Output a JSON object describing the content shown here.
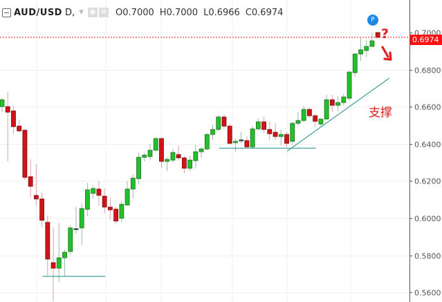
{
  "header": {
    "symbol": "AUD/USD",
    "interval": "D,",
    "open_label": "O",
    "open": "0.7000",
    "high_label": "H",
    "high": "0.7000",
    "low_label": "L",
    "low": "0.6966",
    "close_label": "C",
    "close": "0.6974",
    "icons": [
      "collapse-icon",
      "dropdown-caret-icon",
      "eye-icon",
      "gear-icon"
    ]
  },
  "price_tag": "0.6974",
  "marker": "P",
  "annotations": {
    "question": "?",
    "support": "支撑"
  },
  "colors": {
    "up": "#22c02a",
    "up_border": "#1c6e1c",
    "down": "#d0141a",
    "down_border": "#7a0a0a",
    "doji": "#2d4a3c",
    "lines": "#3d9e97",
    "price_line": "#e01010",
    "marker": "#1e88e5",
    "annotation": "#e02020"
  },
  "chart_data": {
    "type": "candlestick",
    "title": "AUD/USD, D",
    "ylim": [
      0.5549,
      0.7175
    ],
    "yticks": [
      "0.7000",
      "0.6800",
      "0.6600",
      "0.6400",
      "0.6200",
      "0.6000",
      "0.5800",
      "0.5600"
    ],
    "grid": true,
    "last_price": 0.6974,
    "candles_ohlc": [
      [
        0.6601,
        0.6646,
        0.6571,
        0.6638
      ],
      [
        0.6601,
        0.6679,
        0.6306,
        0.6571
      ],
      [
        0.6578,
        0.6604,
        0.6455,
        0.6493
      ],
      [
        0.6496,
        0.653,
        0.6466,
        0.647
      ],
      [
        0.6474,
        0.6481,
        0.6205,
        0.622
      ],
      [
        0.6224,
        0.6317,
        0.6112,
        0.6172
      ],
      [
        0.6123,
        0.6291,
        0.6067,
        0.6104
      ],
      [
        0.6104,
        0.6138,
        0.5951,
        0.5989
      ],
      [
        0.5978,
        0.6015,
        0.569,
        0.578
      ],
      [
        0.5761,
        0.5951,
        0.5552,
        0.5731
      ],
      [
        0.5731,
        0.5974,
        0.5657,
        0.5787
      ],
      [
        0.5787,
        0.5832,
        0.569,
        0.5817
      ],
      [
        0.5821,
        0.5963,
        0.5802,
        0.5948
      ],
      [
        0.5944,
        0.6063,
        0.5918,
        0.5944
      ],
      [
        0.5948,
        0.6078,
        0.5858,
        0.6052
      ],
      [
        0.6048,
        0.619,
        0.6011,
        0.6153
      ],
      [
        0.6134,
        0.6175,
        0.6104,
        0.616
      ],
      [
        0.6157,
        0.6201,
        0.6067,
        0.6123
      ],
      [
        0.6119,
        0.616,
        0.6026,
        0.606
      ],
      [
        0.606,
        0.6108,
        0.5993,
        0.6045
      ],
      [
        0.6049,
        0.6063,
        0.597,
        0.5985
      ],
      [
        0.6,
        0.6093,
        0.5978,
        0.6075
      ],
      [
        0.6071,
        0.6198,
        0.6067,
        0.6157
      ],
      [
        0.6157,
        0.6235,
        0.6104,
        0.6216
      ],
      [
        0.6213,
        0.6351,
        0.6183,
        0.6328
      ],
      [
        0.6328,
        0.6354,
        0.6306,
        0.634
      ],
      [
        0.6332,
        0.6399,
        0.6313,
        0.6366
      ],
      [
        0.6366,
        0.6437,
        0.6362,
        0.6429
      ],
      [
        0.6429,
        0.6437,
        0.6272,
        0.6306
      ],
      [
        0.6306,
        0.6328,
        0.6254,
        0.6317
      ],
      [
        0.6313,
        0.6373,
        0.6299,
        0.6354
      ],
      [
        0.6343,
        0.6392,
        0.631,
        0.6325
      ],
      [
        0.6325,
        0.6336,
        0.6243,
        0.6269
      ],
      [
        0.6269,
        0.6336,
        0.6254,
        0.6313
      ],
      [
        0.631,
        0.6396,
        0.6269,
        0.6358
      ],
      [
        0.6358,
        0.6384,
        0.6325,
        0.6373
      ],
      [
        0.6373,
        0.6459,
        0.6366,
        0.6451
      ],
      [
        0.6451,
        0.6504,
        0.6422,
        0.6478
      ],
      [
        0.6478,
        0.6556,
        0.647,
        0.6545
      ],
      [
        0.6545,
        0.656,
        0.6481,
        0.6496
      ],
      [
        0.6496,
        0.6507,
        0.6396,
        0.6403
      ],
      [
        0.6407,
        0.6429,
        0.6358,
        0.6414
      ],
      [
        0.6422,
        0.6466,
        0.6403,
        0.6422
      ],
      [
        0.6418,
        0.644,
        0.6381,
        0.6384
      ],
      [
        0.6384,
        0.6496,
        0.6373,
        0.6481
      ],
      [
        0.6481,
        0.6537,
        0.6474,
        0.6519
      ],
      [
        0.6519,
        0.6549,
        0.6459,
        0.6478
      ],
      [
        0.6478,
        0.6522,
        0.6418,
        0.6455
      ],
      [
        0.6463,
        0.6511,
        0.6422,
        0.644
      ],
      [
        0.644,
        0.6478,
        0.6392,
        0.6451
      ],
      [
        0.6451,
        0.6466,
        0.6384,
        0.6403
      ],
      [
        0.6414,
        0.6519,
        0.6396,
        0.6511
      ],
      [
        0.6511,
        0.6571,
        0.65,
        0.6526
      ],
      [
        0.6526,
        0.6604,
        0.6519,
        0.6586
      ],
      [
        0.6586,
        0.6593,
        0.6541,
        0.6552
      ],
      [
        0.6552,
        0.6563,
        0.6493,
        0.6522
      ],
      [
        0.6507,
        0.6537,
        0.6496,
        0.6534
      ],
      [
        0.6534,
        0.6664,
        0.653,
        0.6638
      ],
      [
        0.6638,
        0.6664,
        0.6571,
        0.6608
      ],
      [
        0.6608,
        0.6657,
        0.6575,
        0.6623
      ],
      [
        0.6623,
        0.6672,
        0.6608,
        0.6653
      ],
      [
        0.6646,
        0.6791,
        0.6634,
        0.6787
      ],
      [
        0.6784,
        0.6888,
        0.6761,
        0.6884
      ],
      [
        0.6884,
        0.697,
        0.6847,
        0.6907
      ],
      [
        0.6903,
        0.6959,
        0.6869,
        0.6925
      ],
      [
        0.6925,
        0.7,
        0.6925,
        0.6955
      ],
      [
        0.7,
        0.7,
        0.6966,
        0.6974
      ]
    ],
    "drawings": {
      "support_lines": [
        {
          "from_bar": 7,
          "to_bar": 18,
          "price": 0.5687
        },
        {
          "from_bar": 38,
          "to_bar": 55,
          "price": 0.6377
        }
      ],
      "trend_line": {
        "from": [
          50.1,
          0.6362
        ],
        "to": [
          68.0,
          0.6754
        ]
      }
    }
  }
}
